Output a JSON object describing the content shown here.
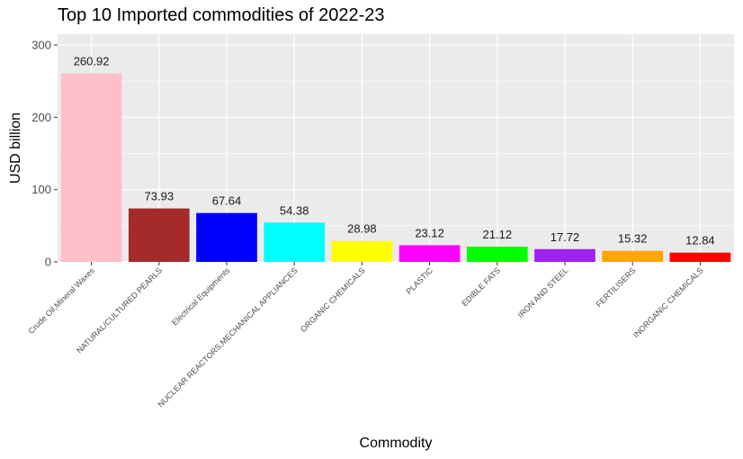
{
  "chart_data": {
    "type": "bar",
    "title": "Top 10 Imported commodities of 2022-23",
    "xlabel": "Commodity",
    "ylabel": "USD billion",
    "ylim": [
      0,
      315
    ],
    "yticks": [
      0,
      100,
      200,
      300
    ],
    "grid": true,
    "legend": "none",
    "categories": [
      "Crude Oil,Mineral Waxes",
      "NATURAL/CULTURED PEARLS",
      "Electrical Equipments",
      "NUCLEAR REACTORS,MECHANICAL APPLIANCES",
      "ORGANIC CHEMICALS",
      "PLASTIC",
      "EDIBLE FATS",
      "IRON AND STEEL",
      "FERTILISERS",
      "INORGANIC CHEMICALS"
    ],
    "values": [
      260.92,
      73.93,
      67.64,
      54.38,
      28.98,
      23.12,
      21.12,
      17.72,
      15.32,
      12.84
    ],
    "value_labels": [
      "260.92",
      "73.93",
      "67.64",
      "54.38",
      "28.98",
      "23.12",
      "21.12",
      "17.72",
      "15.32",
      "12.84"
    ],
    "colors": [
      "#FFC0CB",
      "#A52A2A",
      "#0000FF",
      "#00FFFF",
      "#FFFF00",
      "#FF00FF",
      "#00FF00",
      "#A020F0",
      "#FFA500",
      "#FF0000"
    ],
    "panel_background": "#EBEBEB",
    "grid_color": "#FFFFFF"
  }
}
